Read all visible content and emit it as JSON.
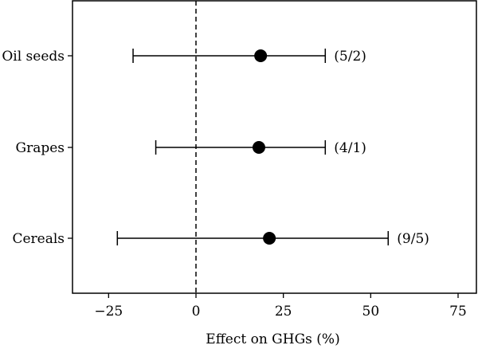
{
  "chart_data": {
    "type": "forest",
    "xlabel": "Effect on GHGs (%)",
    "xlim": [
      -35,
      78
    ],
    "xticks": [
      -25,
      0,
      25,
      50,
      75
    ],
    "xtick_labels": [
      "−25",
      "0",
      "25",
      "50",
      "75"
    ],
    "reference_line_x": 0,
    "grid": false,
    "categories": [
      "Oil seeds",
      "Grapes",
      "Cereals"
    ],
    "points": [
      {
        "label": "Oil seeds",
        "estimate": 18.5,
        "lower": -18,
        "upper": 37,
        "note": "(5/2)"
      },
      {
        "label": "Grapes",
        "estimate": 18,
        "lower": -11.5,
        "upper": 37,
        "note": "(4/1)"
      },
      {
        "label": "Cereals",
        "estimate": 21,
        "lower": -22.5,
        "upper": 55,
        "note": "(9/5)"
      }
    ]
  }
}
